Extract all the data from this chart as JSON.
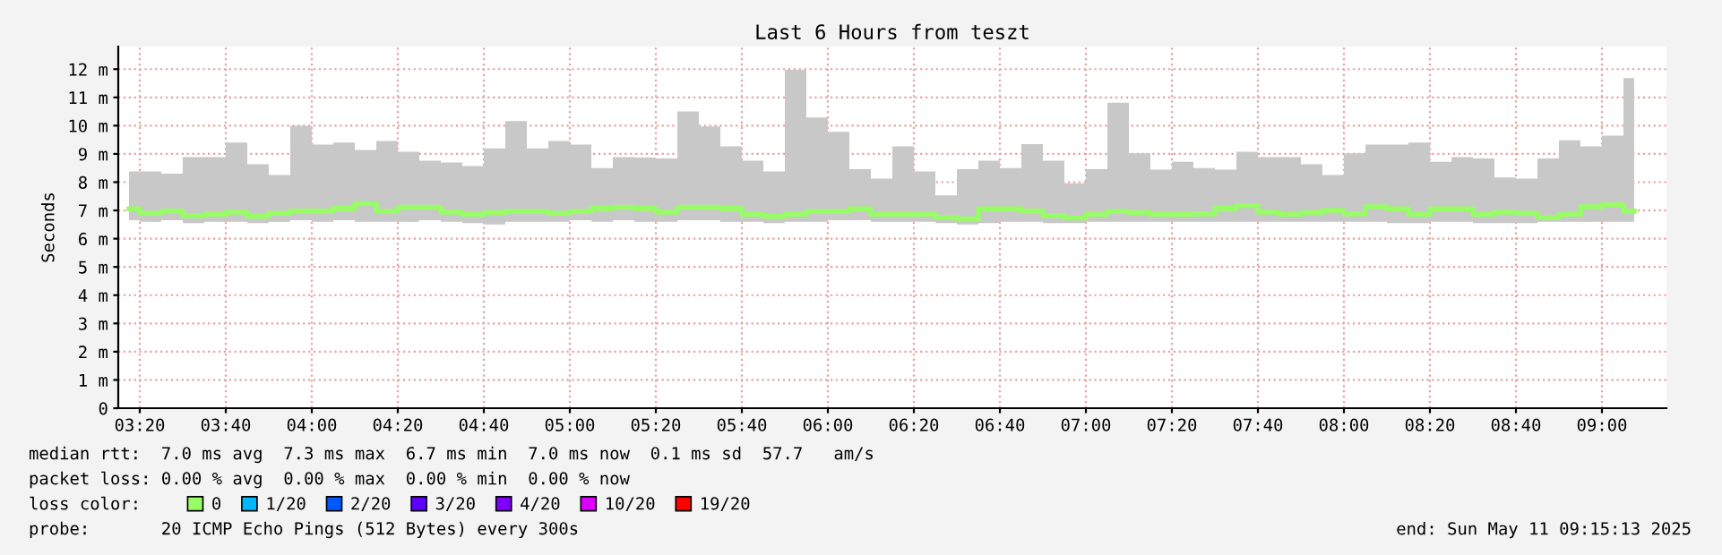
{
  "chart_data": {
    "type": "step",
    "title": "Last 6 Hours from teszt",
    "ylabel": "Seconds",
    "x": [
      3.2917,
      3.375,
      3.4583,
      3.5417,
      3.625,
      3.7083,
      3.7917,
      3.875,
      3.9583,
      4.0417,
      4.125,
      4.2083,
      4.2917,
      4.375,
      4.4583,
      4.5417,
      4.625,
      4.7083,
      4.7917,
      4.875,
      4.9583,
      5.0417,
      5.125,
      5.2083,
      5.2917,
      5.375,
      5.4583,
      5.5417,
      5.625,
      5.7083,
      5.7917,
      5.875,
      5.9583,
      6.0417,
      6.125,
      6.2083,
      6.2917,
      6.375,
      6.4583,
      6.5417,
      6.625,
      6.7083,
      6.7917,
      6.875,
      6.9583,
      7.0417,
      7.125,
      7.2083,
      7.2917,
      7.375,
      7.4583,
      7.5417,
      7.625,
      7.7083,
      7.7917,
      7.875,
      7.9583,
      8.0417,
      8.125,
      8.2083,
      8.2917,
      8.375,
      8.4583,
      8.5417,
      8.625,
      8.7083,
      8.7917,
      8.875,
      8.9583,
      9.0417,
      9.125
    ],
    "series": [
      {
        "name": "0",
        "color": "#98fc66",
        "values": [
          7.06,
          6.9,
          6.98,
          6.81,
          6.86,
          6.94,
          6.79,
          6.9,
          6.98,
          6.98,
          7.07,
          7.24,
          6.96,
          7.11,
          7.11,
          6.94,
          6.86,
          6.92,
          6.96,
          6.96,
          6.9,
          6.96,
          7.07,
          7.11,
          7.07,
          6.94,
          7.11,
          7.11,
          7.07,
          6.86,
          6.79,
          6.86,
          6.96,
          6.96,
          7.06,
          6.86,
          6.86,
          6.86,
          6.75,
          6.7,
          7.06,
          7.06,
          6.98,
          6.81,
          6.73,
          6.86,
          6.96,
          6.92,
          6.86,
          6.86,
          6.88,
          7.07,
          7.17,
          6.94,
          6.86,
          6.92,
          7.0,
          6.88,
          7.13,
          7.06,
          6.86,
          7.06,
          7.06,
          6.86,
          6.94,
          6.9,
          6.75,
          6.86,
          7.13,
          7.2,
          6.98
        ],
        "lower": [
          6.65,
          6.6,
          6.65,
          6.55,
          6.6,
          6.6,
          6.55,
          6.6,
          6.65,
          6.6,
          6.65,
          6.6,
          6.6,
          6.6,
          6.65,
          6.6,
          6.55,
          6.5,
          6.6,
          6.6,
          6.6,
          6.65,
          6.6,
          6.65,
          6.6,
          6.6,
          6.65,
          6.65,
          6.6,
          6.6,
          6.55,
          6.6,
          6.6,
          6.65,
          6.65,
          6.6,
          6.6,
          6.6,
          6.55,
          6.5,
          6.55,
          6.6,
          6.6,
          6.55,
          6.55,
          6.6,
          6.6,
          6.6,
          6.6,
          6.6,
          6.6,
          6.6,
          6.6,
          6.6,
          6.6,
          6.6,
          6.6,
          6.6,
          6.6,
          6.55,
          6.55,
          6.6,
          6.6,
          6.55,
          6.55,
          6.55,
          6.6,
          6.6,
          6.6,
          6.6,
          6.6
        ],
        "upper": [
          8.38,
          8.38,
          8.3,
          8.89,
          8.89,
          9.4,
          8.63,
          8.25,
          10.0,
          9.33,
          9.4,
          9.14,
          9.46,
          9.08,
          8.76,
          8.7,
          8.57,
          9.2,
          10.16,
          9.2,
          9.46,
          9.33,
          8.5,
          8.89,
          8.87,
          8.84,
          10.5,
          9.97,
          9.27,
          8.76,
          8.38,
          11.98,
          10.29,
          9.78,
          8.46,
          8.13,
          9.27,
          8.38,
          7.53,
          8.46,
          8.76,
          8.5,
          9.35,
          8.76,
          7.96,
          8.46,
          10.81,
          9.02,
          8.44,
          8.72,
          8.5,
          8.44,
          9.08,
          8.89,
          8.89,
          8.63,
          8.25,
          9.02,
          9.33,
          9.33,
          9.4,
          8.72,
          8.89,
          8.84,
          8.17,
          8.13,
          8.84,
          9.48,
          9.27,
          9.65,
          11.68
        ]
      },
      {
        "name": "1/20",
        "color": "#00b8ff",
        "values": [
          null,
          null,
          null,
          null,
          null,
          null,
          null,
          null,
          null,
          null,
          null,
          null,
          null,
          null,
          null,
          null,
          null,
          null,
          null,
          null,
          null,
          null,
          null,
          null,
          null,
          null,
          null,
          null,
          null,
          null,
          null,
          null,
          null,
          null,
          null,
          null,
          null,
          null,
          null,
          null,
          null,
          null,
          null,
          null,
          null,
          null,
          null,
          null,
          null,
          null,
          null,
          null,
          null,
          null,
          null,
          null,
          null,
          null,
          null,
          null,
          null,
          null,
          null,
          null,
          null,
          null,
          null,
          null,
          null,
          null,
          null
        ]
      },
      {
        "name": "2/20",
        "color": "#0059ff",
        "values": [
          null,
          null,
          null,
          null,
          null,
          null,
          null,
          null,
          null,
          null,
          null,
          null,
          null,
          null,
          null,
          null,
          null,
          null,
          null,
          null,
          null,
          null,
          null,
          null,
          null,
          null,
          null,
          null,
          null,
          null,
          null,
          null,
          null,
          null,
          null,
          null,
          null,
          null,
          null,
          null,
          null,
          null,
          null,
          null,
          null,
          null,
          null,
          null,
          null,
          null,
          null,
          null,
          null,
          null,
          null,
          null,
          null,
          null,
          null,
          null,
          null,
          null,
          null,
          null,
          null,
          null,
          null,
          null,
          null,
          null,
          null
        ]
      },
      {
        "name": "3/20",
        "color": "#5e00ff",
        "values": [
          null,
          null,
          null,
          null,
          null,
          null,
          null,
          null,
          null,
          null,
          null,
          null,
          null,
          null,
          null,
          null,
          null,
          null,
          null,
          null,
          null,
          null,
          null,
          null,
          null,
          null,
          null,
          null,
          null,
          null,
          null,
          null,
          null,
          null,
          null,
          null,
          null,
          null,
          null,
          null,
          null,
          null,
          null,
          null,
          null,
          null,
          null,
          null,
          null,
          null,
          null,
          null,
          null,
          null,
          null,
          null,
          null,
          null,
          null,
          null,
          null,
          null,
          null,
          null,
          null,
          null,
          null,
          null,
          null,
          null,
          null
        ]
      },
      {
        "name": "4/20",
        "color": "#7e00ff",
        "values": [
          null,
          null,
          null,
          null,
          null,
          null,
          null,
          null,
          null,
          null,
          null,
          null,
          null,
          null,
          null,
          null,
          null,
          null,
          null,
          null,
          null,
          null,
          null,
          null,
          null,
          null,
          null,
          null,
          null,
          null,
          null,
          null,
          null,
          null,
          null,
          null,
          null,
          null,
          null,
          null,
          null,
          null,
          null,
          null,
          null,
          null,
          null,
          null,
          null,
          null,
          null,
          null,
          null,
          null,
          null,
          null,
          null,
          null,
          null,
          null,
          null,
          null,
          null,
          null,
          null,
          null,
          null,
          null,
          null,
          null,
          null
        ]
      },
      {
        "name": "10/20",
        "color": "#dd00ff",
        "values": [
          null,
          null,
          null,
          null,
          null,
          null,
          null,
          null,
          null,
          null,
          null,
          null,
          null,
          null,
          null,
          null,
          null,
          null,
          null,
          null,
          null,
          null,
          null,
          null,
          null,
          null,
          null,
          null,
          null,
          null,
          null,
          null,
          null,
          null,
          null,
          null,
          null,
          null,
          null,
          null,
          null,
          null,
          null,
          null,
          null,
          null,
          null,
          null,
          null,
          null,
          null,
          null,
          null,
          null,
          null,
          null,
          null,
          null,
          null,
          null,
          null,
          null,
          null,
          null,
          null,
          null,
          null,
          null,
          null,
          null,
          null
        ]
      },
      {
        "name": "19/20",
        "color": "#ff0000",
        "values": [
          null,
          null,
          null,
          null,
          null,
          null,
          null,
          null,
          null,
          null,
          null,
          null,
          null,
          null,
          null,
          null,
          null,
          null,
          null,
          null,
          null,
          null,
          null,
          null,
          null,
          null,
          null,
          null,
          null,
          null,
          null,
          null,
          null,
          null,
          null,
          null,
          null,
          null,
          null,
          null,
          null,
          null,
          null,
          null,
          null,
          null,
          null,
          null,
          null,
          null,
          null,
          null,
          null,
          null,
          null,
          null,
          null,
          null,
          null,
          null,
          null,
          null,
          null,
          null,
          null,
          null,
          null,
          null,
          null,
          null,
          null
        ]
      }
    ],
    "legend": "bottom",
    "legend_title": "loss color:",
    "xlim": [
      3.25,
      9.25
    ],
    "xticks": [
      {
        "value": 3.3333,
        "label": "03:20"
      },
      {
        "value": 3.6667,
        "label": "03:40"
      },
      {
        "value": 4.0,
        "label": "04:00"
      },
      {
        "value": 4.3333,
        "label": "04:20"
      },
      {
        "value": 4.6667,
        "label": "04:40"
      },
      {
        "value": 5.0,
        "label": "05:00"
      },
      {
        "value": 5.3333,
        "label": "05:20"
      },
      {
        "value": 5.6667,
        "label": "05:40"
      },
      {
        "value": 6.0,
        "label": "06:00"
      },
      {
        "value": 6.3333,
        "label": "06:20"
      },
      {
        "value": 6.6667,
        "label": "06:40"
      },
      {
        "value": 7.0,
        "label": "07:00"
      },
      {
        "value": 7.3333,
        "label": "07:20"
      },
      {
        "value": 7.6667,
        "label": "07:40"
      },
      {
        "value": 8.0,
        "label": "08:00"
      },
      {
        "value": 8.3333,
        "label": "08:20"
      },
      {
        "value": 8.6667,
        "label": "08:40"
      },
      {
        "value": 9.0,
        "label": "09:00"
      }
    ],
    "ylim": [
      0,
      12.8
    ],
    "yticks": [
      0,
      {
        "value": 1,
        "label": "1 m"
      },
      {
        "value": 2,
        "label": "2 m"
      },
      {
        "value": 3,
        "label": "3 m"
      },
      {
        "value": 4,
        "label": "4 m"
      },
      {
        "value": 5,
        "label": "5 m"
      },
      {
        "value": 6,
        "label": "6 m"
      },
      {
        "value": 7,
        "label": "7 m"
      },
      {
        "value": 8,
        "label": "8 m"
      },
      {
        "value": 9,
        "label": "9 m"
      },
      {
        "value": 10,
        "label": "10 m"
      },
      {
        "value": 11,
        "label": "11 m"
      },
      {
        "value": 12,
        "label": "12 m"
      }
    ],
    "grid": true,
    "annotations": [
      "median rtt:  7.0 ms avg  7.3 ms max  6.7 ms min  7.0 ms now  0.1 ms sd  57.7   am/s",
      "packet loss: 0.00 % avg  0.00 % max  0.00 % min  0.00 % now",
      "probe:       20 ICMP Echo Pings (512 Bytes) every 300s",
      "end: Sun May 11 09:15:13 2025"
    ]
  }
}
